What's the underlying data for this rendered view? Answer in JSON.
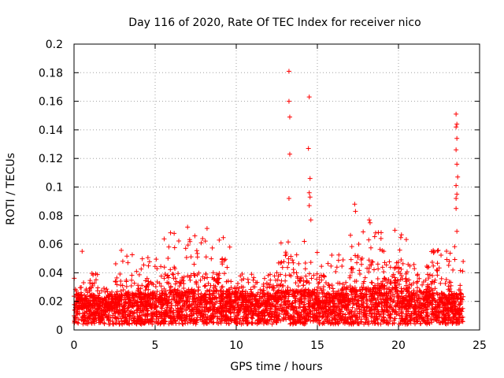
{
  "chart_data": {
    "type": "scatter",
    "title": "Day 116 of 2020, Rate Of TEC Index for receiver nico",
    "xlabel": "GPS time / hours",
    "ylabel": "ROTI / TECUs",
    "xlim": [
      0,
      25
    ],
    "ylim": [
      0,
      0.2
    ],
    "xticks": [
      "0",
      "5",
      "10",
      "15",
      "20",
      "25"
    ],
    "yticks": [
      "0",
      "0.02",
      "0.04",
      "0.06",
      "0.08",
      "0.1",
      "0.12",
      "0.14",
      "0.16",
      "0.18",
      "0.2"
    ],
    "grid": true,
    "marker": "+",
    "color": "#ff0000",
    "highlight_points": [
      {
        "x": 0.5,
        "y": 0.055
      },
      {
        "x": 13.25,
        "y": 0.181
      },
      {
        "x": 13.25,
        "y": 0.16
      },
      {
        "x": 13.3,
        "y": 0.149
      },
      {
        "x": 13.3,
        "y": 0.123
      },
      {
        "x": 13.25,
        "y": 0.092
      },
      {
        "x": 14.5,
        "y": 0.163
      },
      {
        "x": 14.45,
        "y": 0.127
      },
      {
        "x": 14.55,
        "y": 0.106
      },
      {
        "x": 14.5,
        "y": 0.096
      },
      {
        "x": 14.55,
        "y": 0.093
      },
      {
        "x": 14.5,
        "y": 0.087
      },
      {
        "x": 14.6,
        "y": 0.077
      },
      {
        "x": 23.55,
        "y": 0.151
      },
      {
        "x": 23.6,
        "y": 0.144
      },
      {
        "x": 23.55,
        "y": 0.142
      },
      {
        "x": 23.6,
        "y": 0.134
      },
      {
        "x": 23.55,
        "y": 0.126
      },
      {
        "x": 23.6,
        "y": 0.116
      },
      {
        "x": 23.65,
        "y": 0.107
      },
      {
        "x": 23.55,
        "y": 0.101
      },
      {
        "x": 23.6,
        "y": 0.095
      },
      {
        "x": 23.55,
        "y": 0.092
      },
      {
        "x": 23.55,
        "y": 0.085
      },
      {
        "x": 23.6,
        "y": 0.069
      },
      {
        "x": 17.3,
        "y": 0.088
      },
      {
        "x": 17.35,
        "y": 0.083
      },
      {
        "x": 18.2,
        "y": 0.077
      },
      {
        "x": 18.25,
        "y": 0.075
      },
      {
        "x": 7.0,
        "y": 0.072
      },
      {
        "x": 8.2,
        "y": 0.071
      },
      {
        "x": 5.95,
        "y": 0.068
      },
      {
        "x": 9.6,
        "y": 0.058
      },
      {
        "x": 3.85,
        "y": 0.041
      }
    ],
    "bands": [
      {
        "x0": 0.0,
        "x1": 1.5,
        "base": 0.015,
        "peak": 0.03,
        "max": 0.04
      },
      {
        "x0": 1.5,
        "x1": 2.5,
        "base": 0.013,
        "peak": 0.025,
        "max": 0.03
      },
      {
        "x0": 2.5,
        "x1": 3.5,
        "base": 0.016,
        "peak": 0.035,
        "max": 0.058
      },
      {
        "x0": 3.5,
        "x1": 5.5,
        "base": 0.016,
        "peak": 0.033,
        "max": 0.053
      },
      {
        "x0": 5.5,
        "x1": 7.5,
        "base": 0.018,
        "peak": 0.04,
        "max": 0.068
      },
      {
        "x0": 7.5,
        "x1": 9.5,
        "base": 0.018,
        "peak": 0.04,
        "max": 0.065
      },
      {
        "x0": 9.5,
        "x1": 12.5,
        "base": 0.016,
        "peak": 0.03,
        "max": 0.04
      },
      {
        "x0": 12.5,
        "x1": 15.5,
        "base": 0.018,
        "peak": 0.04,
        "max": 0.063
      },
      {
        "x0": 15.5,
        "x1": 17.0,
        "base": 0.016,
        "peak": 0.035,
        "max": 0.055
      },
      {
        "x0": 17.0,
        "x1": 20.5,
        "base": 0.02,
        "peak": 0.048,
        "max": 0.07
      },
      {
        "x0": 20.5,
        "x1": 22.0,
        "base": 0.017,
        "peak": 0.035,
        "max": 0.047
      },
      {
        "x0": 22.0,
        "x1": 24.0,
        "base": 0.016,
        "peak": 0.035,
        "max": 0.06
      }
    ]
  }
}
